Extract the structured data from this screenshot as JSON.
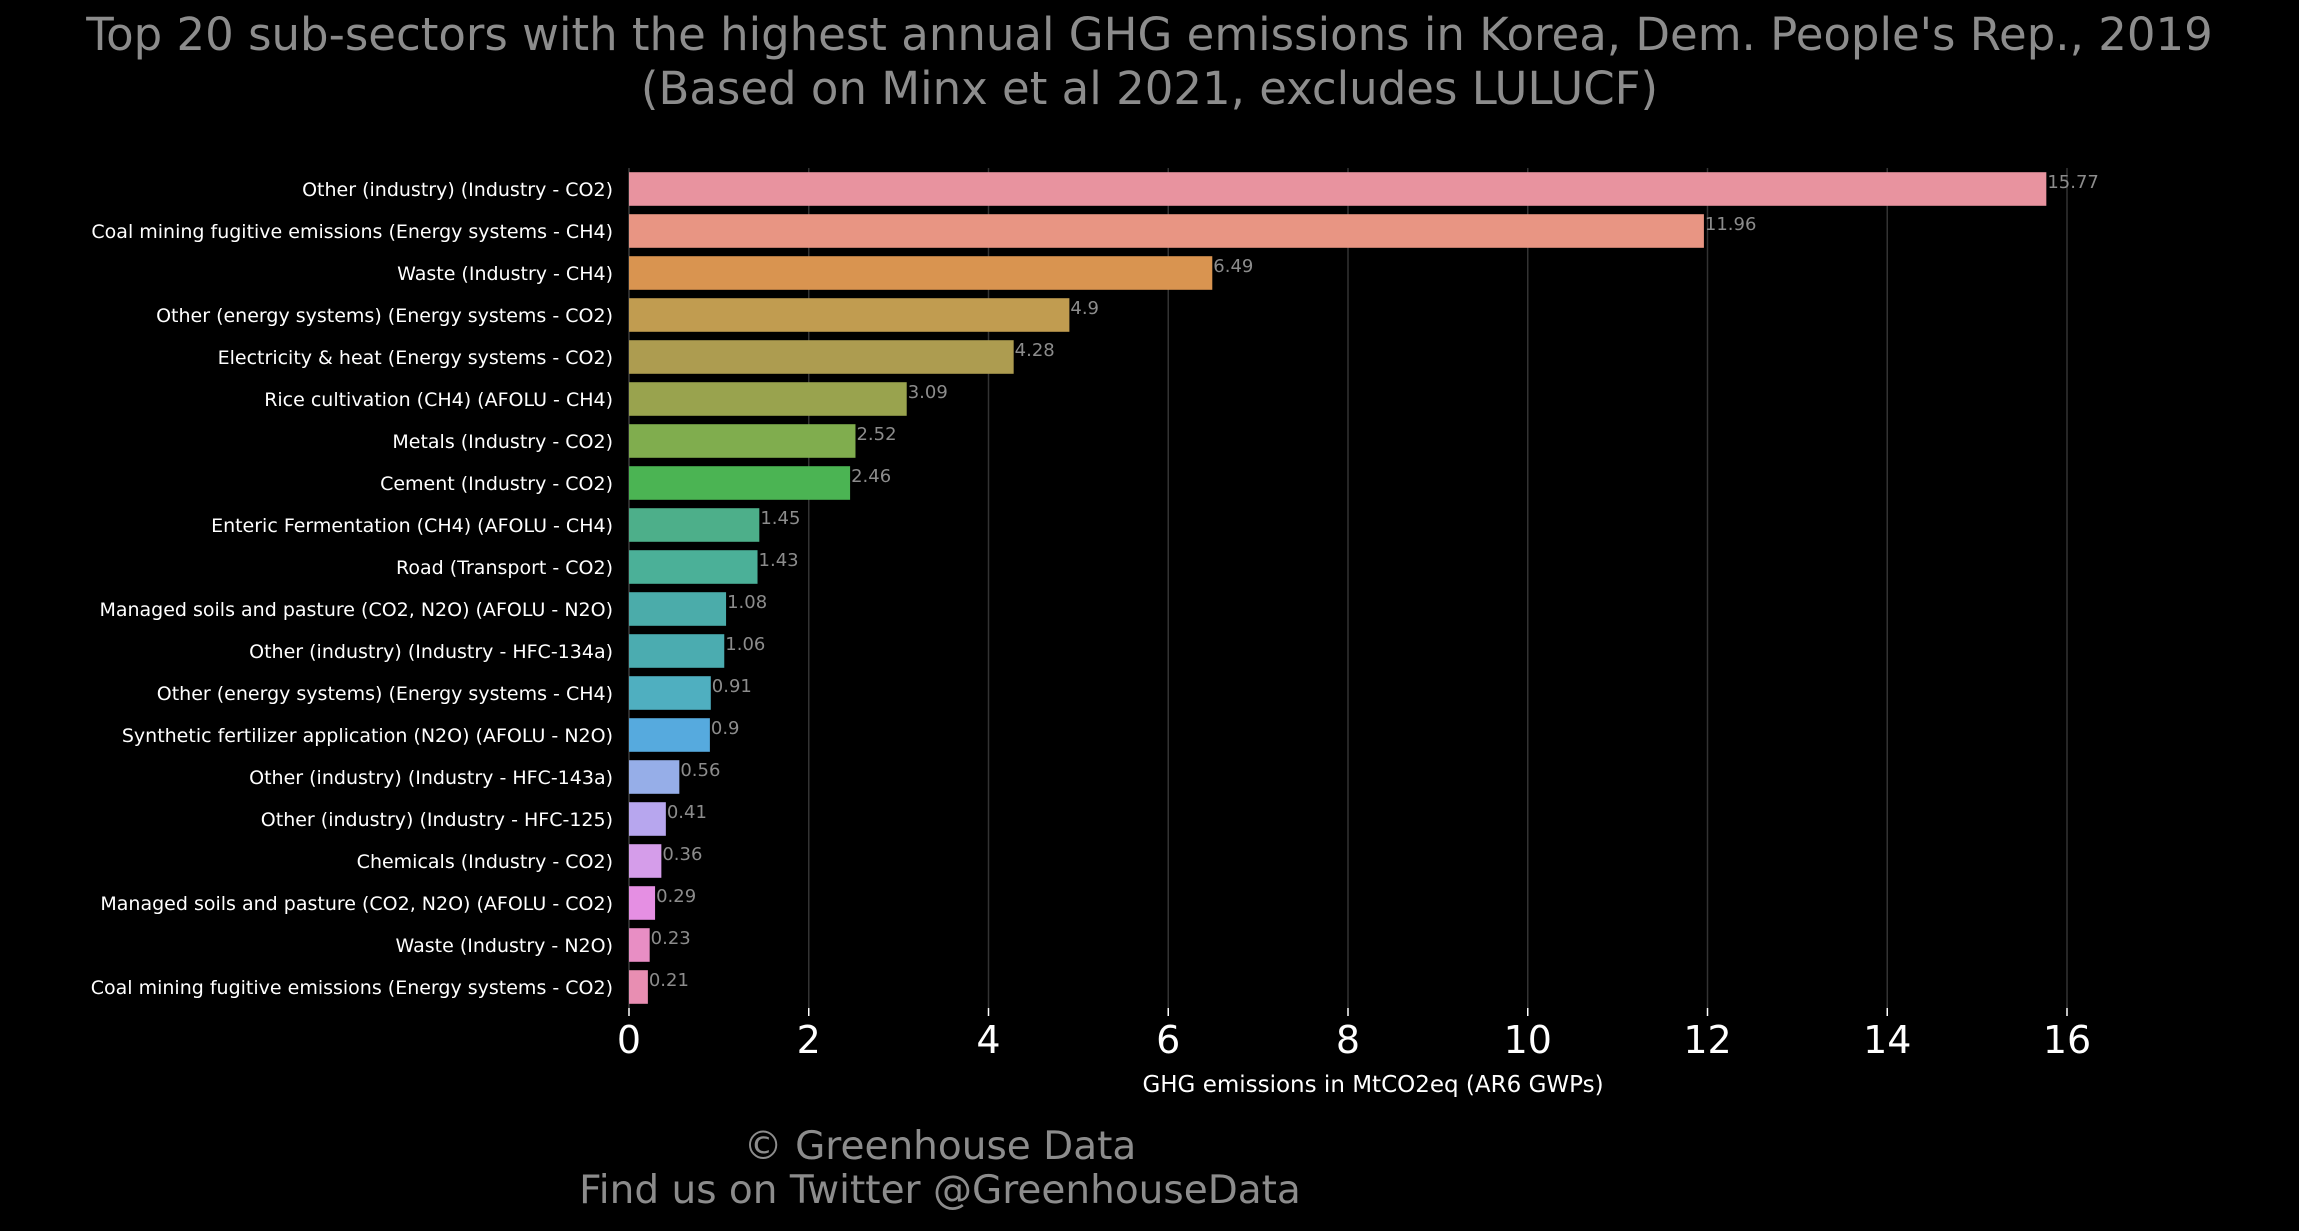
{
  "title_line1": "Top 20 sub-sectors with the highest annual GHG emissions in Korea, Dem. People's Rep., 2019",
  "title_line2": "(Based on Minx et al 2021, excludes LULUCF)",
  "footer": {
    "copyright": "© Greenhouse Data",
    "twitter": "Find us on Twitter @GreenhouseData"
  },
  "colors": {
    "background": "#000000",
    "text": "#ffffff",
    "muted_text": "#8c8c8c",
    "grid": "#333333"
  },
  "chart_data": {
    "type": "bar",
    "orientation": "horizontal",
    "xlabel": "GHG emissions in MtCO2eq (AR6 GWPs)",
    "ylabel": "",
    "xlim": [
      0,
      17
    ],
    "xticks": [
      0,
      2,
      4,
      6,
      8,
      10,
      12,
      14,
      16
    ],
    "grid": "vertical",
    "categories": [
      "Other (industry) (Industry - CO2)",
      "Coal mining fugitive emissions (Energy systems - CH4)",
      "Waste (Industry - CH4)",
      "Other (energy systems) (Energy systems - CO2)",
      "Electricity & heat (Energy systems - CO2)",
      "Rice cultivation (CH4) (AFOLU - CH4)",
      "Metals (Industry - CO2)",
      "Cement (Industry - CO2)",
      "Enteric Fermentation (CH4) (AFOLU - CH4)",
      "Road (Transport - CO2)",
      "Managed soils and pasture (CO2, N2O) (AFOLU - N2O)",
      "Other (industry) (Industry - HFC-134a)",
      "Other (energy systems) (Energy systems - CH4)",
      "Synthetic fertilizer application (N2O) (AFOLU - N2O)",
      "Other (industry) (Industry - HFC-143a)",
      "Other (industry) (Industry - HFC-125)",
      "Chemicals (Industry - CO2)",
      "Managed soils and pasture (CO2, N2O) (AFOLU - CO2)",
      "Waste (Industry - N2O)",
      "Coal mining fugitive emissions (Energy systems - CO2)"
    ],
    "values": [
      15.77,
      11.96,
      6.49,
      4.9,
      4.28,
      3.09,
      2.52,
      2.46,
      1.45,
      1.43,
      1.08,
      1.06,
      0.91,
      0.9,
      0.56,
      0.41,
      0.36,
      0.29,
      0.23,
      0.21
    ],
    "value_labels": [
      "15.77",
      "11.96",
      "6.49",
      "4.9",
      "4.28",
      "3.09",
      "2.52",
      "2.46",
      "1.45",
      "1.43",
      "1.08",
      "1.06",
      "0.91",
      "0.9",
      "0.56",
      "0.41",
      "0.36",
      "0.29",
      "0.23",
      "0.21"
    ],
    "bar_colors": [
      "#e8939f",
      "#e89583",
      "#d99450",
      "#c19c50",
      "#ad9c50",
      "#99a34e",
      "#80ad4e",
      "#4bb453",
      "#4daf8a",
      "#4bb098",
      "#4bacaa",
      "#4bacb0",
      "#4fafc0",
      "#56aade",
      "#96aee8",
      "#b7a6ee",
      "#d59dea",
      "#e58fe3",
      "#e88ec4",
      "#e88eb2"
    ]
  }
}
